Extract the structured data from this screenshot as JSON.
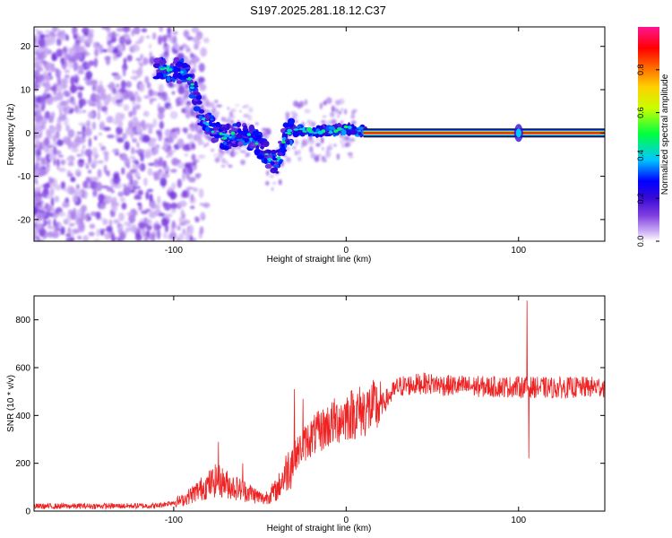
{
  "title": "S197.2025.281.18.12.C37",
  "chart_data": [
    {
      "type": "heatmap",
      "xlabel": "Height of straight line (km)",
      "ylabel": "Frequency (Hz)",
      "xlim": [
        -181,
        150
      ],
      "ylim": [
        -25,
        24.5
      ],
      "xticks": [
        -100,
        0,
        100
      ],
      "yticks": [
        -20,
        -10,
        0,
        10,
        20
      ],
      "colorbar": {
        "label": "Normalized spectral amplitude",
        "range": [
          0,
          1
        ],
        "ticks": [
          0.0,
          0.2,
          0.4,
          0.6,
          0.8
        ],
        "tick_labels": [
          "0.0",
          "0.2",
          "0.4",
          "0.6",
          "0.8"
        ],
        "colors": [
          "#ffffff",
          "#c7a8f2",
          "#7f3fe0",
          "#3a0bd6",
          "#0000ff",
          "#00c8ff",
          "#00ff40",
          "#c8ff00",
          "#ffd000",
          "#ff6000",
          "#ff0000",
          "#ff1493"
        ]
      },
      "ridge": [
        {
          "x": -108,
          "y": 15
        },
        {
          "x": -93,
          "y": 14
        },
        {
          "x": -88,
          "y": 10
        },
        {
          "x": -84,
          "y": 4
        },
        {
          "x": -78,
          "y": 1
        },
        {
          "x": -70,
          "y": -1
        },
        {
          "x": -60,
          "y": 0
        },
        {
          "x": -52,
          "y": -2
        },
        {
          "x": -46,
          "y": -5
        },
        {
          "x": -40,
          "y": -7
        },
        {
          "x": -35,
          "y": 0
        },
        {
          "x": -30,
          "y": 0.5
        },
        {
          "x": -20,
          "y": 0.3
        },
        {
          "x": -10,
          "y": 0.5
        },
        {
          "x": 0,
          "y": 1
        },
        {
          "x": 10,
          "y": 0.3
        },
        {
          "x": 150,
          "y": 0
        }
      ],
      "band": {
        "x_start": 10,
        "x_end": 150,
        "y": 0,
        "amplitude": 1.0
      },
      "feature_at_x": 100
    },
    {
      "type": "line",
      "xlabel": "Height of straight line (km)",
      "ylabel": "SNR (10 * v/v)",
      "xlim": [
        -181,
        150
      ],
      "ylim": [
        0,
        900
      ],
      "xticks": [
        -100,
        0,
        100
      ],
      "yticks": [
        0,
        200,
        400,
        600,
        800
      ],
      "color": "#ee2222",
      "trend": [
        {
          "x": -181,
          "y": 20
        },
        {
          "x": -110,
          "y": 22
        },
        {
          "x": -95,
          "y": 45
        },
        {
          "x": -85,
          "y": 90
        },
        {
          "x": -75,
          "y": 130
        },
        {
          "x": -65,
          "y": 100
        },
        {
          "x": -55,
          "y": 75
        },
        {
          "x": -48,
          "y": 50
        },
        {
          "x": -40,
          "y": 90
        },
        {
          "x": -30,
          "y": 230
        },
        {
          "x": -22,
          "y": 300
        },
        {
          "x": -10,
          "y": 360
        },
        {
          "x": 0,
          "y": 400
        },
        {
          "x": 10,
          "y": 420
        },
        {
          "x": 20,
          "y": 440
        },
        {
          "x": 25,
          "y": 480
        },
        {
          "x": 30,
          "y": 520
        },
        {
          "x": 45,
          "y": 535
        },
        {
          "x": 60,
          "y": 525
        },
        {
          "x": 80,
          "y": 520
        },
        {
          "x": 100,
          "y": 520
        },
        {
          "x": 120,
          "y": 515
        },
        {
          "x": 150,
          "y": 520
        }
      ],
      "spikes": [
        {
          "x": -74,
          "y": 290
        },
        {
          "x": -60,
          "y": 200
        },
        {
          "x": -30,
          "y": 510
        },
        {
          "x": -25,
          "y": 470
        },
        {
          "x": 105,
          "y": 880
        },
        {
          "x": 106,
          "y": 220
        }
      ]
    }
  ]
}
